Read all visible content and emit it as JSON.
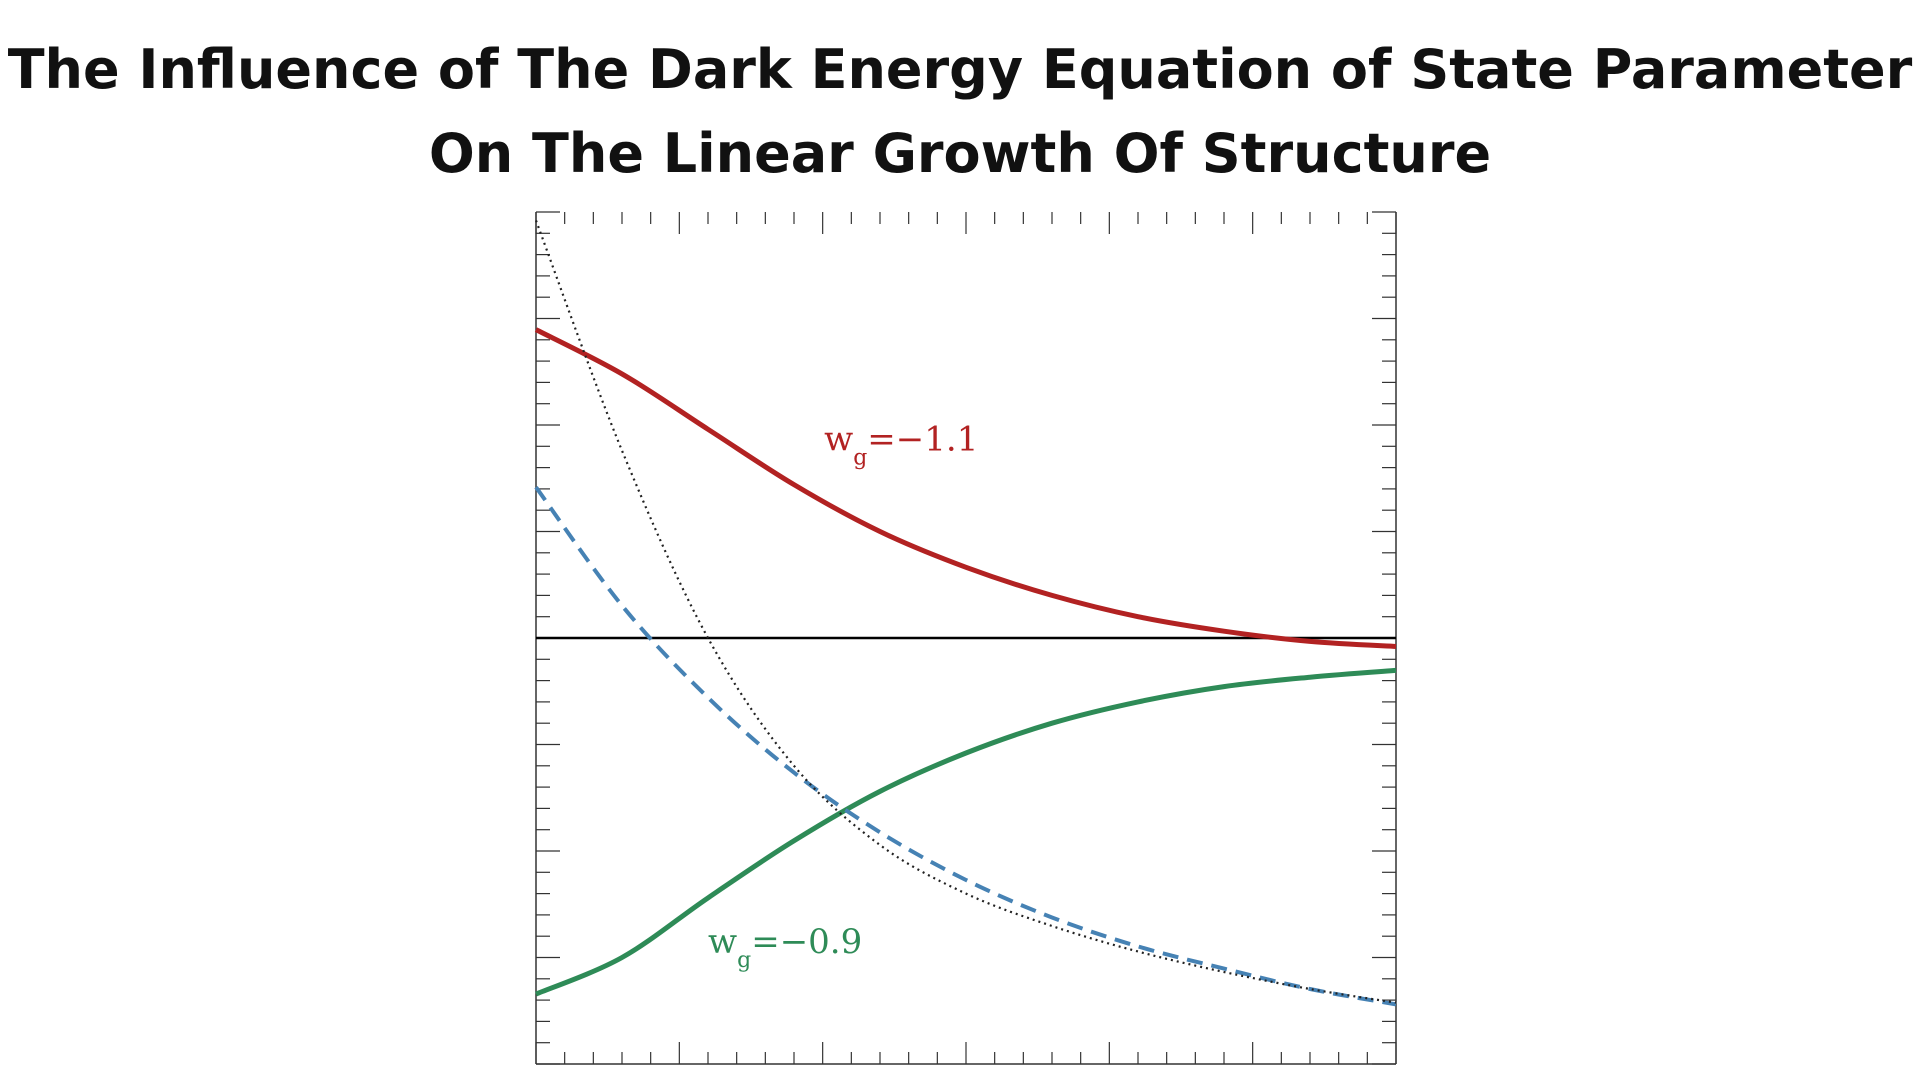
{
  "title_line1": "The Influence of The Dark Energy Equation of State Parameter",
  "title_line2": "On The Linear Growth Of Structure",
  "chart_data": {
    "type": "line",
    "title": "The Influence of The Dark Energy Equation of State Parameter On The Linear Growth Of Structure",
    "x": [
      0,
      0.1,
      0.2,
      0.3,
      0.4,
      0.5,
      0.6,
      0.7,
      0.8,
      0.9,
      1.0
    ],
    "xlim": [
      0,
      1
    ],
    "ylim": [
      0,
      1
    ],
    "grid": false,
    "series": [
      {
        "name": "",
        "values": [
          0.862,
          0.81,
          0.745,
          0.68,
          0.625,
          0.583,
          0.55,
          0.525,
          0.508,
          0.496,
          0.49
        ],
        "color": "#b22222",
        "style": "solid"
      },
      {
        "name": "",
        "values": [
          0.082,
          0.125,
          0.195,
          0.262,
          0.32,
          0.365,
          0.4,
          0.425,
          0.443,
          0.454,
          0.462
        ],
        "color": "#2e8b57",
        "style": "solid"
      },
      {
        "name": "",
        "values": [
          0.677,
          0.538,
          0.43,
          0.342,
          0.272,
          0.216,
          0.172,
          0.138,
          0.112,
          0.088,
          0.07
        ],
        "color": "#4682b4",
        "style": "dashed"
      },
      {
        "name": "",
        "values": [
          0.99,
          0.72,
          0.5,
          0.35,
          0.257,
          0.2,
          0.162,
          0.132,
          0.108,
          0.088,
          0.072
        ],
        "color": "#222222",
        "style": "dotted"
      }
    ],
    "reference_line": {
      "y": 0.5,
      "color": "#000000"
    },
    "annotations": [
      {
        "text": "w",
        "subscript": "g",
        "suffix": "=−1.1",
        "color": "#b22222",
        "x": 0.335,
        "y": 0.72
      },
      {
        "text": "w",
        "subscript": "g",
        "suffix": "=−0.9",
        "color": "#2e8b57",
        "x": 0.2,
        "y": 0.13
      }
    ]
  }
}
